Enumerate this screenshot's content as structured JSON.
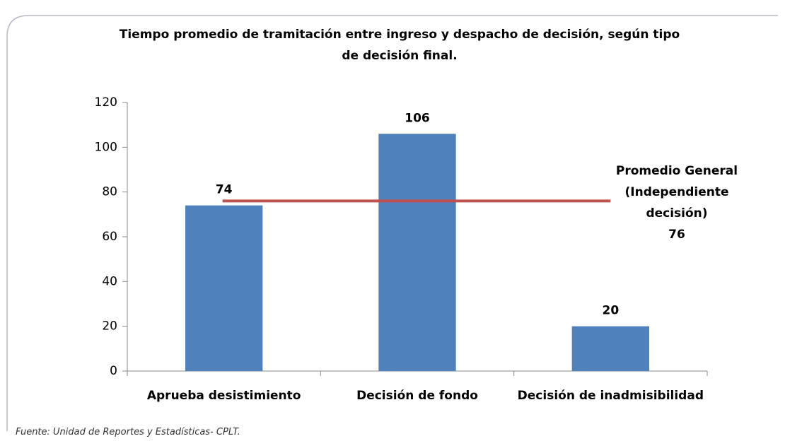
{
  "chart_data": {
    "type": "bar",
    "title": "Tiempo promedio de tramitación entre ingreso y  despacho de decisión, según tipo de decisión final.",
    "categories": [
      "Aprueba desistimiento",
      "Decisión de fondo",
      "Decisión de inadmisibilidad"
    ],
    "values": [
      74,
      106,
      20
    ],
    "color": "#4f81bd",
    "ylim": [
      0,
      120
    ],
    "yticks": [
      0,
      20,
      40,
      60,
      80,
      100,
      120
    ],
    "reference_line": {
      "value": 76,
      "label_lines": [
        "Promedio General",
        "(Independiente",
        "decisión)"
      ],
      "color": "#c0504d"
    },
    "source": "Fuente: Unidad de Reportes y Estadísticas- CPLT."
  }
}
